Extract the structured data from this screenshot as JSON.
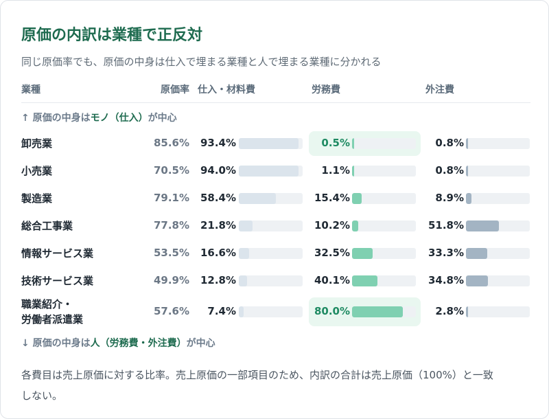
{
  "title": "原価の内訳は業種で正反対",
  "subtitle": "同じ原価率でも、原価の中身は仕入で埋まる業種と人で埋まる業種に分かれる",
  "headers": {
    "industry": "業種",
    "cost_ratio": "原価率",
    "materials": "仕入・材料費",
    "labor": "労務費",
    "outsourcing": "外注費"
  },
  "section_top": {
    "prefix": "↑ 原価の中身は",
    "highlight": "モノ（仕入）",
    "suffix": "が中心"
  },
  "section_bottom": {
    "prefix": "↓ 原価の中身は",
    "highlight": "人（労務費・外注費）",
    "suffix": "が中心"
  },
  "footnote": "各費目は売上原価に対する比率。売上原価の一部項目のため、内訳の合計は売上原価（100%）と一致しない。",
  "colors": {
    "title": "#1e6b4f",
    "materials_bar": "#dbe4ec",
    "labor_bar": "#7fd0b1",
    "outsourcing_bar": "#a3b4c3",
    "highlight_bg": "#e9f7f0"
  },
  "chart_data": {
    "type": "table",
    "columns": [
      "業種",
      "原価率",
      "仕入・材料費",
      "労務費",
      "外注費"
    ],
    "unit": "%",
    "rows": [
      {
        "industry": "卸売業",
        "cost_ratio": 85.6,
        "materials": 93.4,
        "labor": 0.5,
        "outsourcing": 0.8,
        "highlight": "labor"
      },
      {
        "industry": "小売業",
        "cost_ratio": 70.5,
        "materials": 94.0,
        "labor": 1.1,
        "outsourcing": 0.8
      },
      {
        "industry": "製造業",
        "cost_ratio": 79.1,
        "materials": 58.4,
        "labor": 15.4,
        "outsourcing": 8.9
      },
      {
        "industry": "総合工事業",
        "cost_ratio": 77.8,
        "materials": 21.8,
        "labor": 10.2,
        "outsourcing": 51.8
      },
      {
        "industry": "情報サービス業",
        "cost_ratio": 53.5,
        "materials": 16.6,
        "labor": 32.5,
        "outsourcing": 33.3
      },
      {
        "industry": "技術サービス業",
        "cost_ratio": 49.9,
        "materials": 12.8,
        "labor": 40.1,
        "outsourcing": 34.8
      },
      {
        "industry": "職業紹介・\n労働者派遣業",
        "cost_ratio": 57.6,
        "materials": 7.4,
        "labor": 80.0,
        "outsourcing": 2.8,
        "highlight": "labor"
      }
    ],
    "bar_max": 100
  }
}
